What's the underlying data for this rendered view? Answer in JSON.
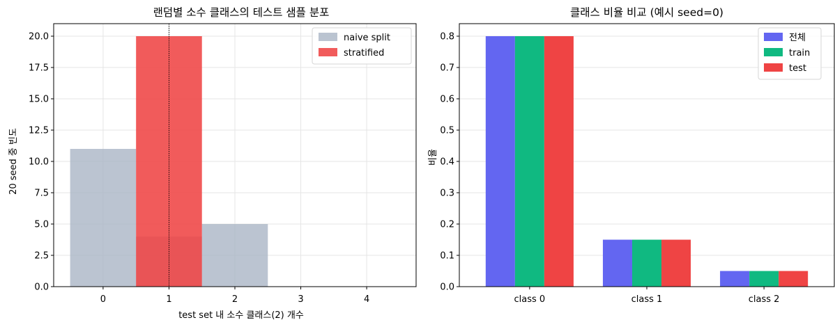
{
  "chart_data": [
    {
      "type": "bar",
      "title": "랜덤별 소수 클래스의 테스트 샘플 분포",
      "xlabel": "test set 내 소수 클래스(2) 개수",
      "ylabel": "20 seed 중 빈도",
      "categories": [
        "0",
        "1",
        "2",
        "3",
        "4"
      ],
      "series": [
        {
          "name": "naive split",
          "color": "#aab5c5",
          "opacity": 0.8,
          "values": [
            11,
            4,
            5,
            0,
            0
          ]
        },
        {
          "name": "stratified",
          "color": "#ef4444",
          "opacity": 0.88,
          "values": [
            0,
            20,
            0,
            0,
            0
          ]
        }
      ],
      "reference_line_x": 1,
      "ylim": [
        0,
        21
      ],
      "xlim": [
        -0.75,
        4.75
      ],
      "yticks": [
        "0.0",
        "2.5",
        "5.0",
        "7.5",
        "10.0",
        "12.5",
        "15.0",
        "17.5",
        "20.0"
      ],
      "grid": true,
      "legend_position": "top-right"
    },
    {
      "type": "bar",
      "title": "클래스 비율 비교 (예시 seed=0)",
      "xlabel": "",
      "ylabel": "비율",
      "categories": [
        "class 0",
        "class 1",
        "class 2"
      ],
      "series": [
        {
          "name": "전체",
          "color": "#6366f1",
          "values": [
            0.8,
            0.15,
            0.05
          ]
        },
        {
          "name": "train",
          "color": "#10b981",
          "values": [
            0.8,
            0.15,
            0.05
          ]
        },
        {
          "name": "test",
          "color": "#ef4444",
          "values": [
            0.8,
            0.15,
            0.05
          ]
        }
      ],
      "ylim": [
        0,
        0.84
      ],
      "yticks": [
        "0.0",
        "0.1",
        "0.2",
        "0.3",
        "0.4",
        "0.5",
        "0.6",
        "0.7",
        "0.8"
      ],
      "grid": true,
      "legend_position": "top-right"
    }
  ]
}
